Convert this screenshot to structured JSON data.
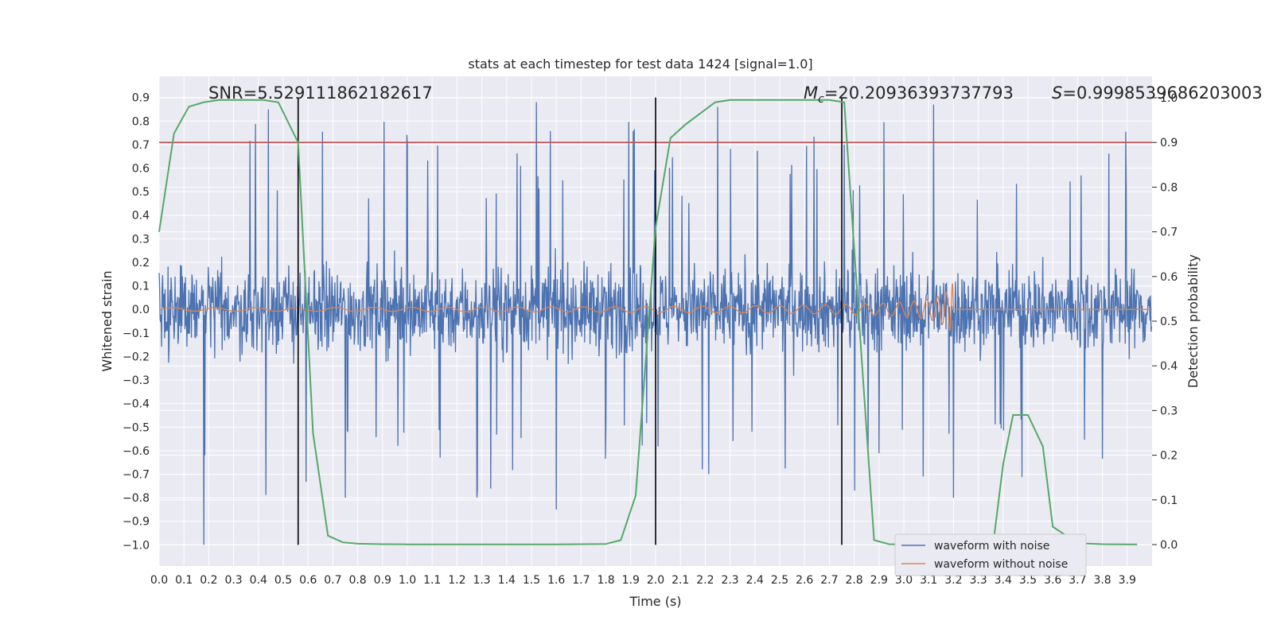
{
  "chart_data": {
    "type": "line",
    "title": "stats at each timestep for test data 1424 [signal=1.0]",
    "xlabel": "Time (s)",
    "ylabel": "Whitened strain",
    "y2label": "Detection probability",
    "xlim": [
      0.0,
      4.0
    ],
    "ylim": [
      -1.09,
      0.99
    ],
    "y2lim": [
      -0.048,
      1.048
    ],
    "x_ticks": [
      0.0,
      0.1,
      0.2,
      0.3,
      0.4,
      0.5,
      0.6,
      0.7,
      0.8,
      0.9,
      1.0,
      1.1,
      1.2,
      1.3,
      1.4,
      1.5,
      1.6,
      1.7,
      1.8,
      1.9,
      2.0,
      2.1,
      2.2,
      2.3,
      2.4,
      2.5,
      2.6,
      2.7,
      2.8,
      2.9,
      3.0,
      3.1,
      3.2,
      3.3,
      3.4,
      3.5,
      3.6,
      3.7,
      3.8,
      3.9
    ],
    "y_ticks": [
      0.9,
      0.8,
      0.7,
      0.6,
      0.5,
      0.4,
      0.3,
      0.2,
      0.1,
      0.0,
      -0.1,
      -0.2,
      -0.3,
      -0.4,
      -0.5,
      -0.6,
      -0.7,
      -0.8,
      -0.9,
      -1.0
    ],
    "y2_ticks": [
      1.0,
      0.9,
      0.8,
      0.7,
      0.6,
      0.5,
      0.4,
      0.3,
      0.2,
      0.1,
      0.0
    ],
    "grid": true,
    "legend_position": "lower-right",
    "series": [
      {
        "name": "waveform with noise",
        "color": "#4c72b0",
        "note_peaks": [
          [
            0.18,
            -1.0
          ],
          [
            0.44,
            0.85
          ],
          [
            1.52,
            0.88
          ],
          [
            2.25,
            0.86
          ],
          [
            3.12,
            0.87
          ],
          [
            0.75,
            -0.8
          ],
          [
            1.6,
            -0.85
          ],
          [
            3.2,
            -0.8
          ]
        ]
      },
      {
        "name": "waveform without noise",
        "color": "#dd8452",
        "chirp_end": 3.2
      }
    ],
    "probability_series": {
      "color": "#55a868",
      "x": [
        0.0,
        0.06,
        0.12,
        0.18,
        0.24,
        0.3,
        0.36,
        0.42,
        0.48,
        0.56,
        0.62,
        0.68,
        0.74,
        0.8,
        0.9,
        1.0,
        1.2,
        1.4,
        1.6,
        1.8,
        1.86,
        1.92,
        2.0,
        2.06,
        2.12,
        2.18,
        2.24,
        2.3,
        2.4,
        2.5,
        2.6,
        2.7,
        2.76,
        2.82,
        2.88,
        2.94,
        3.0,
        3.1,
        3.2,
        3.3,
        3.36,
        3.4,
        3.44,
        3.5,
        3.56,
        3.6,
        3.7,
        3.8,
        3.9,
        3.94
      ],
      "y": [
        0.7,
        0.92,
        0.98,
        0.99,
        0.995,
        0.995,
        0.995,
        0.995,
        0.99,
        0.9,
        0.25,
        0.02,
        0.005,
        0.002,
        0.001,
        0.0005,
        0.0005,
        0.0005,
        0.0005,
        0.0015,
        0.01,
        0.11,
        0.71,
        0.91,
        0.94,
        0.965,
        0.99,
        0.995,
        0.995,
        0.995,
        0.995,
        0.995,
        0.99,
        0.5,
        0.01,
        0.001,
        0.0005,
        0.0005,
        0.0005,
        0.0005,
        0.001,
        0.18,
        0.29,
        0.29,
        0.22,
        0.04,
        0.003,
        0.001,
        0.0005,
        0.0005
      ]
    },
    "threshold_line": {
      "value": 0.9,
      "color": "#c44e52"
    },
    "vertical_lines": [
      0.56,
      2.0,
      2.75
    ],
    "annotations": [
      {
        "text": "SNR=5.529111862182617"
      },
      {
        "text_prefix": "M",
        "text_sub": "c",
        "text": "=20.20936393737793"
      },
      {
        "text_prefix": "S",
        "text": "=0.999853968620300 3",
        "display": "=0.9998539686203003"
      }
    ]
  }
}
